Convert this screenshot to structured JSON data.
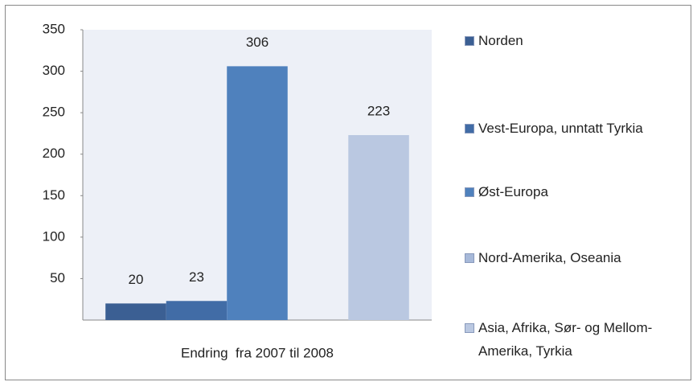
{
  "chart_data": {
    "type": "bar",
    "categories": [
      "Endring  fra 2007 til 2008"
    ],
    "series": [
      {
        "name": "Norden",
        "color": "#3b5f93",
        "values": [
          20
        ]
      },
      {
        "name": "Vest-Europa, unntatt Tyrkia",
        "color": "#416ca6",
        "values": [
          23
        ]
      },
      {
        "name": "Øst-Europa",
        "color": "#4f81bd",
        "values": [
          306
        ]
      },
      {
        "name": "Nord-Amerika, Oseania",
        "color": "#a7b9d9",
        "values": [
          null
        ]
      },
      {
        "name": "Asia, Afrika, Sør- og Mellom-Amerika, Tyrkia",
        "color": "#bac8e1",
        "values": [
          223
        ]
      }
    ],
    "ylim": [
      0,
      350
    ],
    "yticks": [
      50,
      100,
      150,
      200,
      250,
      300,
      350
    ],
    "legend": "right"
  }
}
